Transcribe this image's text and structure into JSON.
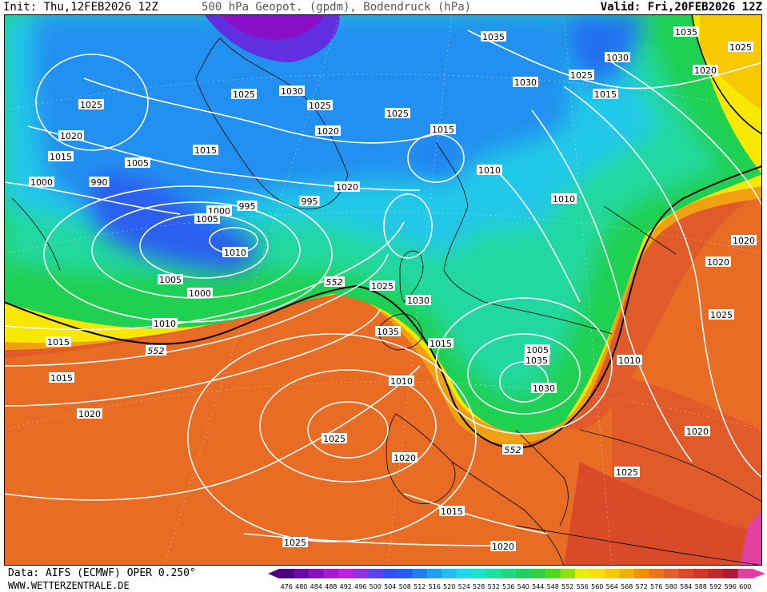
{
  "header": {
    "init": "Init: Thu,12FEB2026 12Z",
    "title": "500 hPa Geopot. (gpdm), Bodendruck (hPa)",
    "valid": "Valid: Fri,20FEB2026 12Z"
  },
  "footer": {
    "data_source": "Data: AIFS (ECMWF) OPER 0.250°",
    "website": "WWW.WETTERZENTRALE.DE"
  },
  "colorbar": {
    "ticks": [
      "476",
      "480",
      "484",
      "488",
      "492",
      "496",
      "500",
      "504",
      "508",
      "512",
      "516",
      "520",
      "524",
      "528",
      "532",
      "536",
      "540",
      "544",
      "548",
      "552",
      "556",
      "560",
      "564",
      "568",
      "572",
      "576",
      "580",
      "584",
      "588",
      "592",
      "596",
      "600"
    ],
    "colors": [
      "#4b0082",
      "#6a0aa0",
      "#8a10b8",
      "#a818cc",
      "#c020e0",
      "#9030e0",
      "#6040e8",
      "#3050f0",
      "#2060f0",
      "#2080f0",
      "#20a0f0",
      "#20c0f0",
      "#20d8e8",
      "#20e0c8",
      "#20e0a0",
      "#20d880",
      "#20d060",
      "#30d040",
      "#50d820",
      "#90e010",
      "#e8f000",
      "#f8e000",
      "#f8c800",
      "#f0b000",
      "#f09000",
      "#e87820",
      "#e06030",
      "#d84a28",
      "#d03828",
      "#c02830",
      "#b01838",
      "#e040a0"
    ]
  },
  "pressure_labels": [
    "1035",
    "1035",
    "1030",
    "1025",
    "1030",
    "1025",
    "1020",
    "1025",
    "1025",
    "1025",
    "1015",
    "1030",
    "1025",
    "1020",
    "1015",
    "1020",
    "1010",
    "1015",
    "1005",
    "1015",
    "1020",
    "1000",
    "1010",
    "995",
    "990",
    "995",
    "1000",
    "1005",
    "1010",
    "1005",
    "1000",
    "1010",
    "1015",
    "1015",
    "1020",
    "1025",
    "1030",
    "1035",
    "1015",
    "1010",
    "1005",
    "1035",
    "1030",
    "1025",
    "1020",
    "1015",
    "1020",
    "1025",
    "1020",
    "1025",
    "1010",
    "1020",
    "1025",
    "1020"
  ],
  "geopotential_labels": [
    "552",
    "552",
    "552"
  ]
}
